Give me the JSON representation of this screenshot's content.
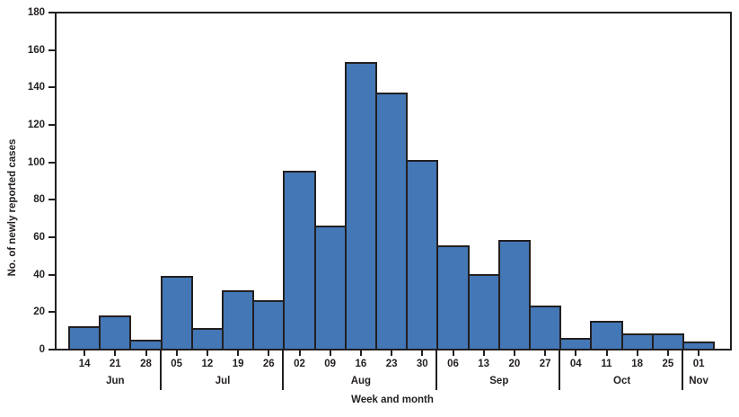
{
  "figure": {
    "xlabel": "Week and month",
    "ylabel": "No. of newly reported cases"
  },
  "colors": {
    "bar_fill": "#4377b6",
    "bar_border": "#231f20",
    "axis": "#231f20",
    "text": "#231f20",
    "background": "#ffffff"
  },
  "chart_data": {
    "type": "bar",
    "title": "",
    "xlabel": "Week and month",
    "ylabel": "No. of newly reported cases",
    "ylim": [
      0,
      180
    ],
    "yticks": [
      0,
      20,
      40,
      60,
      80,
      100,
      120,
      140,
      160,
      180
    ],
    "grid": false,
    "legend_position": "none",
    "categories": [
      "14",
      "21",
      "28",
      "05",
      "12",
      "19",
      "26",
      "02",
      "09",
      "16",
      "23",
      "30",
      "06",
      "13",
      "20",
      "27",
      "04",
      "11",
      "18",
      "25",
      "01"
    ],
    "values": [
      12,
      18,
      5,
      39,
      11,
      31,
      26,
      95,
      66,
      153,
      137,
      101,
      55,
      40,
      58,
      23,
      6,
      15,
      8,
      8,
      4
    ],
    "month_groups": [
      {
        "label": "Jun",
        "count": 3
      },
      {
        "label": "Jul",
        "count": 4
      },
      {
        "label": "Aug",
        "count": 5
      },
      {
        "label": "Sep",
        "count": 4
      },
      {
        "label": "Oct",
        "count": 4
      },
      {
        "label": "Nov",
        "count": 1
      }
    ]
  }
}
